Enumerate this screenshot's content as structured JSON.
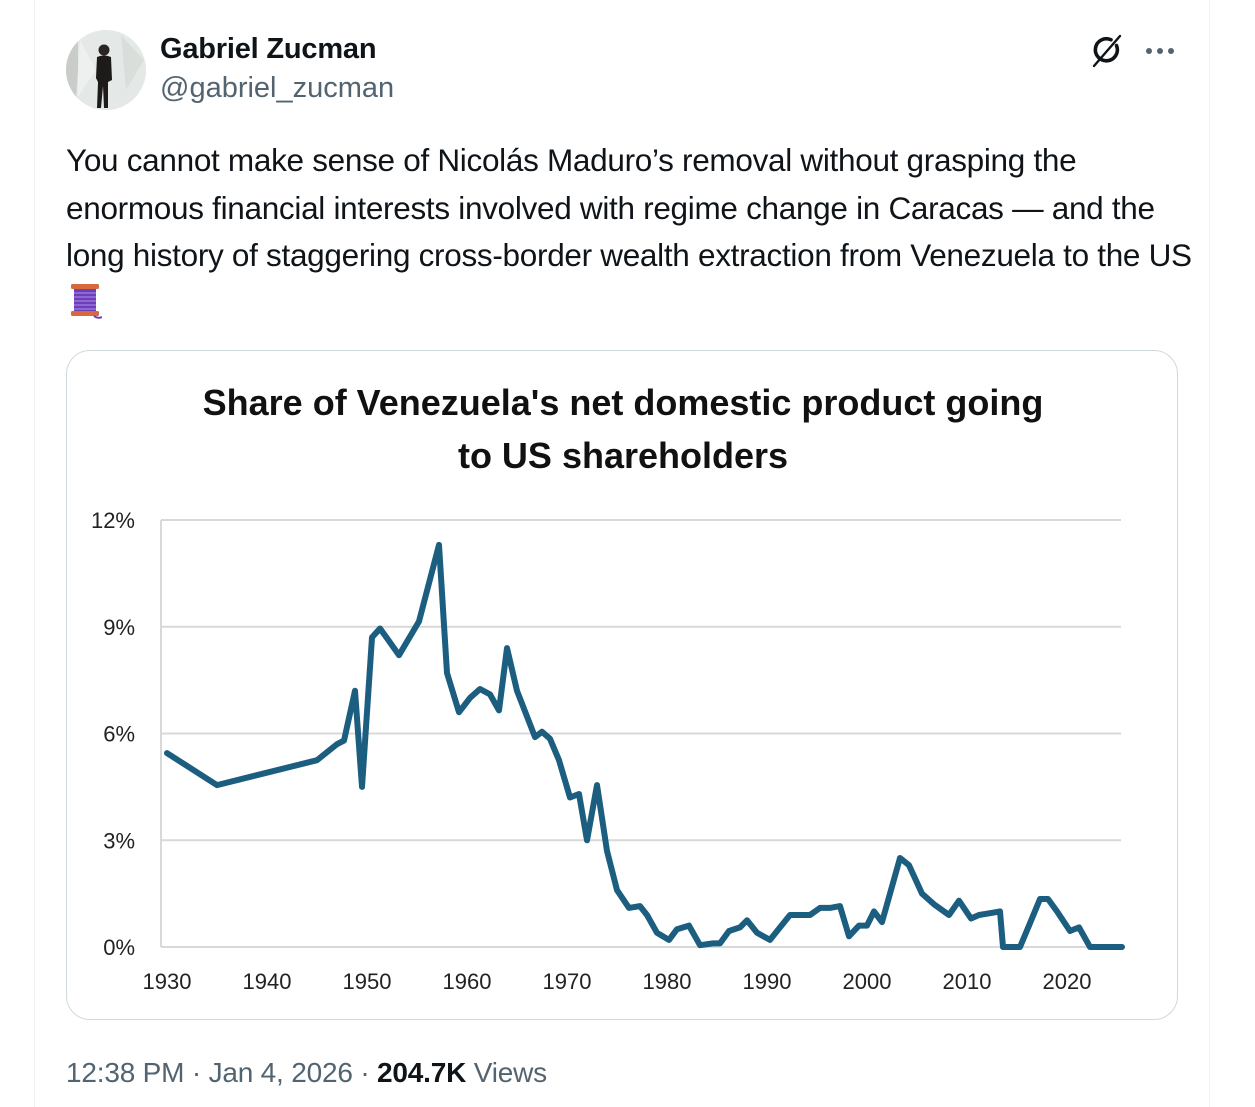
{
  "author": {
    "display_name": "Gabriel Zucman",
    "handle": "@gabriel_zucman",
    "avatar_icon": "profile-photo"
  },
  "header_actions": {
    "grok_icon": "grok-icon",
    "more_icon": "more-options-icon"
  },
  "post": {
    "text": "You cannot make sense of Nicolás Maduro’s removal without grasping the enormous financial interests involved with regime change in Caracas — and the long history of staggering cross-border wealth extraction from Venezuela to the US",
    "emoji": "spool-of-thread-emoji"
  },
  "meta": {
    "time": "12:38 PM",
    "separator": "·",
    "date": "Jan 4, 2026",
    "views_count": "204.7K",
    "views_label": "Views"
  },
  "colors": {
    "line": "#1b5e80",
    "grid": "#d9d9d9",
    "text_secondary": "#536471"
  },
  "chart_data": {
    "type": "line",
    "title": "Share of Venezuela's net domestic product going to US shareholders",
    "title_lines": [
      "Share of Venezuela's net domestic product going",
      "to US shareholders"
    ],
    "xlabel": "",
    "ylabel": "",
    "xlim": [
      1930,
      2026
    ],
    "ylim": [
      0,
      12
    ],
    "x_ticks": [
      1930,
      1940,
      1950,
      1960,
      1970,
      1980,
      1990,
      2000,
      2010,
      2020
    ],
    "x_tick_labels": [
      "1930",
      "1940",
      "1950",
      "1960",
      "1970",
      "1980",
      "1990",
      "2000",
      "2010",
      "2020"
    ],
    "y_ticks": [
      0,
      3,
      6,
      9,
      12
    ],
    "y_tick_labels": [
      "0%",
      "3%",
      "6%",
      "9%",
      "12%"
    ],
    "grid": true,
    "legend": "none",
    "series": [
      {
        "name": "Share to US shareholders (%)",
        "x": [
          1930,
          1935,
          1945,
          1947,
          1947.7,
          1948.8,
          1949.5,
          1950.5,
          1951.3,
          1952.2,
          1953.2,
          1955.2,
          1957.2,
          1958,
          1959.2,
          1960.3,
          1961.3,
          1962.3,
          1963.2,
          1964,
          1965,
          1966.8,
          1967.5,
          1968.3,
          1969.2,
          1970.3,
          1971.2,
          1972,
          1973,
          1974,
          1975,
          1976.2,
          1977.3,
          1978,
          1979,
          1980.2,
          1981,
          1982.2,
          1983.3,
          1984.6,
          1985.3,
          1986.2,
          1987.3,
          1988,
          1989,
          1990.3,
          1991.3,
          1992.3,
          1993.3,
          1994.3,
          1995.3,
          1996.3,
          1997.3,
          1998.2,
          1999.2,
          2000,
          2000.7,
          2001.5,
          2002.4,
          2003.3,
          2004.2,
          2005.5,
          2006.7,
          2008.2,
          2009.2,
          2010.4,
          2011.2,
          2012.3,
          2013.3,
          2013.6,
          2014.3,
          2015.3,
          2016.2,
          2017.3,
          2018.1,
          2019,
          2020.3,
          2021.2,
          2022.3,
          2025.5
        ],
        "values": [
          5.45,
          4.55,
          5.25,
          5.7,
          5.8,
          7.2,
          4.5,
          8.7,
          8.95,
          8.6,
          8.2,
          9.15,
          11.3,
          7.7,
          6.6,
          7.0,
          7.25,
          7.1,
          6.65,
          8.4,
          7.2,
          5.9,
          6.05,
          5.85,
          5.25,
          4.2,
          4.3,
          3.0,
          4.55,
          2.7,
          1.6,
          1.1,
          1.15,
          0.9,
          0.4,
          0.2,
          0.5,
          0.6,
          0.05,
          0.1,
          0.1,
          0.45,
          0.55,
          0.75,
          0.4,
          0.2,
          0.55,
          0.9,
          0.9,
          0.9,
          1.1,
          1.1,
          1.15,
          0.3,
          0.6,
          0.6,
          1.0,
          0.7,
          1.6,
          2.5,
          2.3,
          1.5,
          1.2,
          0.9,
          1.3,
          0.8,
          0.9,
          0.95,
          1.0,
          0.0,
          0.0,
          0.0,
          0.6,
          1.35,
          1.35,
          1.0,
          0.45,
          0.55,
          0.0,
          0.0
        ]
      }
    ]
  }
}
